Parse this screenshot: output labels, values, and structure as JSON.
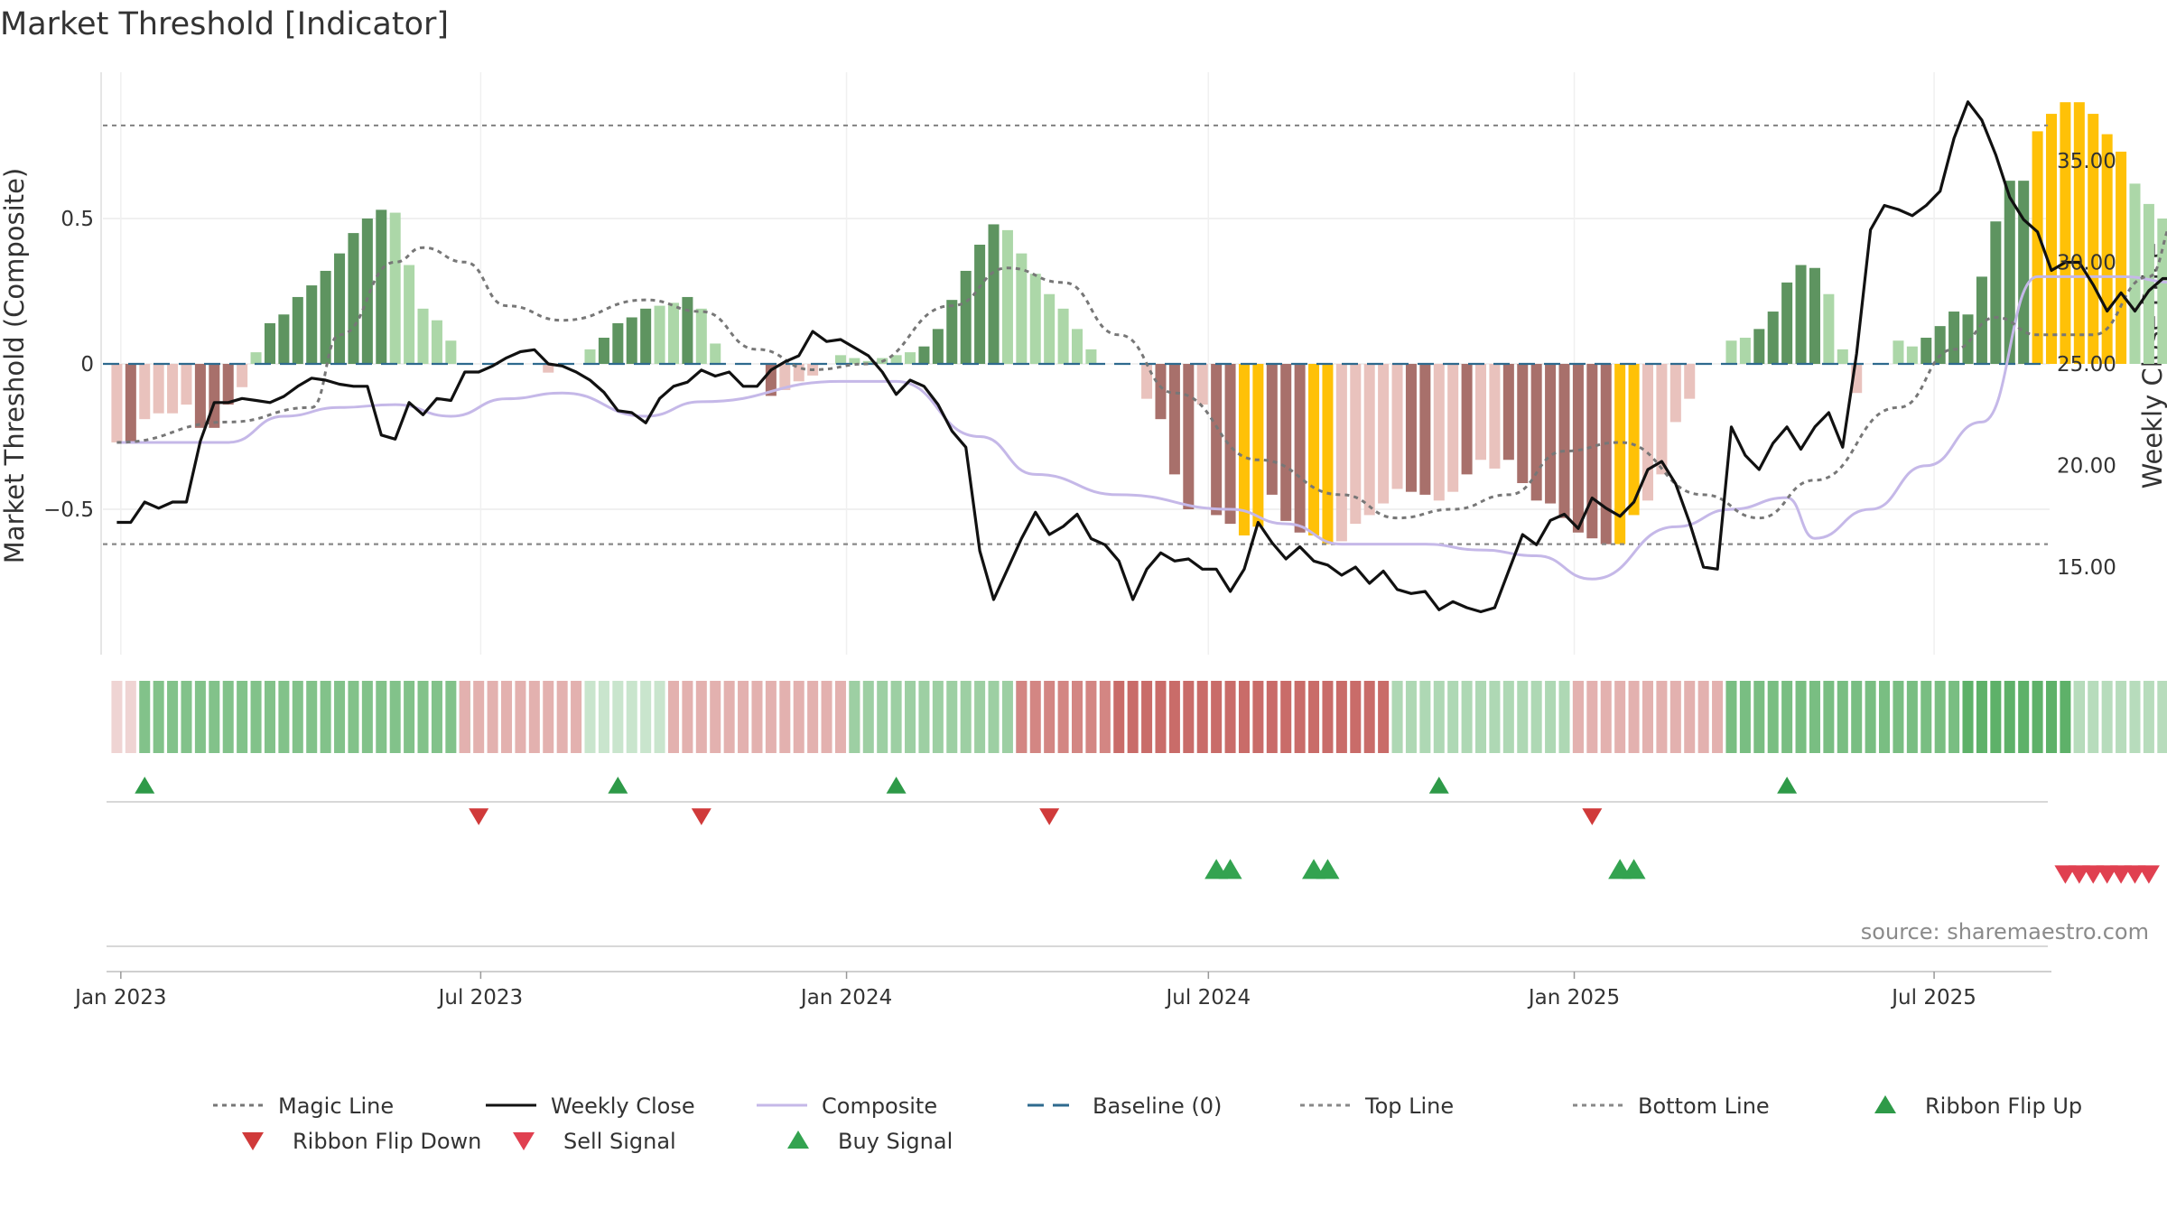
{
  "colors": {
    "magic": "#777777",
    "close": "#111111",
    "composite": "#c5b8e8",
    "baseline": "#2e6a8e",
    "topline": "#888888",
    "bottomline": "#888888",
    "bar_pos_dark": "#5e9460",
    "bar_pos_light": "#acd7a8",
    "bar_neg_dark": "#a8706b",
    "bar_neg_light": "#e9c2bd",
    "bar_extreme": "#ffc107",
    "flip_up": "#2e9a48",
    "flip_down": "#d03a3a",
    "sell": "#e04050",
    "buy": "#33a350"
  },
  "chart_data": {
    "type": "bar",
    "title": "Market Threshold [Indicator]",
    "ylabel_left": "Market Threshold (Composite)",
    "ylabel_right": "Weekly Close Price",
    "source": "source: sharemaestro.com",
    "x_range": [
      "2022-12-23",
      "2025-08-29"
    ],
    "left_ylim": [
      -1.0,
      1.0
    ],
    "right_ylim": [
      9.0,
      38.7
    ],
    "left_ticks": [
      {
        "value": 0.5,
        "label": "0.5"
      },
      {
        "value": 0,
        "label": "0"
      },
      {
        "value": -0.5,
        "label": "−0.5"
      }
    ],
    "right_ticks": [
      {
        "value": 35,
        "label": "35.00"
      },
      {
        "value": 30,
        "label": "30.00"
      },
      {
        "value": 25,
        "label": "25.00"
      },
      {
        "value": 20,
        "label": "20.00"
      },
      {
        "value": 15,
        "label": "15.00"
      }
    ],
    "x_ticks": [
      {
        "date": "2023-01-01",
        "label": "Jan 2023"
      },
      {
        "date": "2023-07-01",
        "label": "Jul 2023"
      },
      {
        "date": "2024-01-01",
        "label": "Jan 2024"
      },
      {
        "date": "2024-07-01",
        "label": "Jul 2024"
      },
      {
        "date": "2025-01-01",
        "label": "Jan 2025"
      },
      {
        "date": "2025-07-01",
        "label": "Jul 2025"
      }
    ],
    "top_line": 0.82,
    "bottom_line": -0.62,
    "baseline": 0,
    "grid": true,
    "start_date": "2022-12-30",
    "week_step_days": 7,
    "bars": [
      -0.27,
      -0.27,
      -0.19,
      -0.17,
      -0.17,
      -0.14,
      -0.22,
      -0.22,
      -0.14,
      -0.08,
      0.04,
      0.14,
      0.17,
      0.23,
      0.27,
      0.32,
      0.38,
      0.45,
      0.5,
      0.53,
      0.52,
      0.34,
      0.19,
      0.15,
      0.08,
      0,
      0,
      0,
      0,
      0,
      0,
      -0.03,
      0,
      0,
      0.05,
      0.09,
      0.14,
      0.16,
      0.19,
      0.2,
      0.21,
      0.23,
      0.19,
      0.07,
      0,
      0,
      0,
      -0.11,
      -0.09,
      -0.06,
      -0.04,
      0,
      0.03,
      0.02,
      0.01,
      0.02,
      0.03,
      0.04,
      0.06,
      0.12,
      0.22,
      0.32,
      0.41,
      0.48,
      0.46,
      0.38,
      0.31,
      0.24,
      0.19,
      0.12,
      0.05,
      0,
      0,
      0,
      -0.12,
      -0.19,
      -0.38,
      -0.5,
      -0.14,
      -0.52,
      -0.55,
      -0.59,
      -0.56,
      -0.45,
      -0.54,
      -0.58,
      -0.59,
      -0.62,
      -0.61,
      -0.55,
      -0.52,
      -0.48,
      -0.43,
      -0.44,
      -0.45,
      -0.47,
      -0.44,
      -0.38,
      -0.33,
      -0.36,
      -0.33,
      -0.41,
      -0.47,
      -0.48,
      -0.53,
      -0.58,
      -0.6,
      -0.62,
      -0.62,
      -0.52,
      -0.47,
      -0.38,
      -0.2,
      -0.12,
      0,
      0,
      0.08,
      0.09,
      0.12,
      0.18,
      0.28,
      0.34,
      0.33,
      0.24,
      0.05,
      -0.1,
      0,
      0,
      0.08,
      0.06,
      0.09,
      0.13,
      0.18,
      0.17,
      0.3,
      0.49,
      0.63,
      0.63,
      0.8,
      0.86,
      0.9,
      0.9,
      0.86,
      0.79,
      0.73,
      0.62,
      0.55,
      0.5,
      0.42,
      0.37,
      0.33,
      0.3,
      0.25,
      0.2,
      0.17,
      0.18,
      0.18,
      0.24,
      0.25,
      0.28,
      0.34,
      0.39,
      0.51,
      0.51,
      0.44,
      0.42
    ],
    "bar_colors": [
      "neg_light",
      "neg_dark",
      "neg_light",
      "neg_light",
      "neg_light",
      "neg_light",
      "neg_dark",
      "neg_dark",
      "neg_dark",
      "neg_light",
      "pos_light",
      "pos_dark",
      "pos_dark",
      "pos_dark",
      "pos_dark",
      "pos_dark",
      "pos_dark",
      "pos_dark",
      "pos_dark",
      "pos_dark",
      "pos_light",
      "pos_light",
      "pos_light",
      "pos_light",
      "pos_light",
      "neg_light",
      "neg_light",
      "neg_light",
      "neg_light",
      "neg_light",
      "neg_light",
      "neg_light",
      "neg_light",
      "neg_light",
      "pos_light",
      "pos_dark",
      "pos_dark",
      "pos_dark",
      "pos_dark",
      "pos_light",
      "pos_light",
      "pos_dark",
      "pos_light",
      "pos_light",
      "neg_light",
      "neg_light",
      "neg_light",
      "neg_dark",
      "neg_light",
      "neg_light",
      "neg_light",
      "neg_light",
      "pos_light",
      "pos_light",
      "pos_light",
      "pos_light",
      "pos_light",
      "pos_light",
      "pos_dark",
      "pos_dark",
      "pos_dark",
      "pos_dark",
      "pos_dark",
      "pos_dark",
      "pos_light",
      "pos_light",
      "pos_light",
      "pos_light",
      "pos_light",
      "pos_light",
      "pos_light",
      "neg_light",
      "neg_light",
      "neg_light",
      "neg_light",
      "neg_dark",
      "neg_dark",
      "neg_dark",
      "neg_light",
      "neg_dark",
      "neg_dark",
      "extreme",
      "extreme",
      "neg_dark",
      "neg_dark",
      "neg_dark",
      "extreme",
      "extreme",
      "neg_light",
      "neg_light",
      "neg_light",
      "neg_light",
      "neg_light",
      "neg_dark",
      "neg_dark",
      "neg_light",
      "neg_light",
      "neg_dark",
      "neg_light",
      "neg_light",
      "neg_dark",
      "neg_dark",
      "neg_dark",
      "neg_dark",
      "neg_dark",
      "neg_dark",
      "neg_dark",
      "neg_dark",
      "extreme",
      "extreme",
      "neg_light",
      "neg_light",
      "neg_light",
      "neg_light",
      "neg_light",
      "neg_light",
      "pos_light",
      "pos_light",
      "pos_dark",
      "pos_dark",
      "pos_dark",
      "pos_dark",
      "pos_dark",
      "pos_light",
      "pos_light",
      "neg_light",
      "pos_light",
      "pos_light",
      "pos_light",
      "pos_light",
      "pos_dark",
      "pos_dark",
      "pos_dark",
      "pos_dark",
      "pos_dark",
      "pos_dark",
      "pos_dark",
      "pos_dark",
      "extreme",
      "extreme",
      "extreme",
      "extreme",
      "extreme",
      "extreme",
      "extreme",
      "pos_light",
      "pos_light",
      "pos_light",
      "pos_light",
      "pos_light",
      "pos_light",
      "pos_light",
      "pos_light",
      "pos_light",
      "pos_light",
      "pos_light",
      "pos_light",
      "pos_dark",
      "pos_dark",
      "pos_dark",
      "pos_dark",
      "pos_dark",
      "pos_dark",
      "pos_dark",
      "pos_light",
      "pos_light"
    ],
    "weekly_close": [
      17.2,
      17.2,
      18.2,
      17.9,
      18.2,
      18.2,
      21.2,
      23.1,
      23.1,
      23.3,
      23.2,
      23.1,
      23.4,
      23.9,
      24.3,
      24.2,
      24.0,
      23.9,
      23.9,
      21.5,
      21.3,
      23.1,
      22.5,
      23.3,
      23.2,
      24.6,
      24.6,
      24.9,
      25.3,
      25.6,
      25.7,
      25.0,
      24.9,
      24.6,
      24.2,
      23.6,
      22.7,
      22.6,
      22.1,
      23.3,
      23.9,
      24.1,
      24.7,
      24.4,
      24.6,
      23.9,
      23.9,
      24.7,
      25.1,
      25.4,
      26.6,
      26.1,
      26.2,
      25.8,
      25.4,
      24.6,
      23.5,
      24.2,
      23.9,
      23.0,
      21.7,
      20.9,
      15.8,
      13.4,
      14.9,
      16.4,
      17.7,
      16.6,
      17.0,
      17.6,
      16.4,
      16.1,
      15.3,
      13.4,
      14.9,
      15.7,
      15.3,
      15.4,
      14.9,
      14.9,
      13.8,
      14.9,
      17.2,
      16.2,
      15.4,
      16.0,
      15.3,
      15.1,
      14.6,
      15.0,
      14.2,
      14.8,
      13.9,
      13.7,
      13.8,
      12.9,
      13.3,
      13.0,
      12.8,
      13.0,
      14.8,
      16.6,
      16.1,
      17.3,
      17.6,
      16.9,
      18.4,
      17.9,
      17.5,
      18.2,
      19.8,
      20.2,
      19.1,
      17.2,
      15.0,
      14.9,
      21.9,
      20.5,
      19.8,
      21.1,
      21.9,
      20.8,
      21.9,
      22.6,
      20.9,
      25.5,
      31.6,
      32.8,
      32.6,
      32.3,
      32.8,
      33.5,
      36.1,
      37.9,
      37.0,
      35.3,
      33.2,
      32.1,
      31.5,
      29.6,
      30.0,
      30.0,
      28.9,
      27.6,
      28.5,
      27.6,
      28.6,
      29.2,
      29.2,
      30.2,
      30.1,
      31.2,
      31.5,
      31.2,
      31.5,
      31.3,
      29.7,
      29.6
    ]
  },
  "series_paths": {
    "magic": [
      [
        -0.27,
        0
      ],
      [
        -0.2,
        8
      ],
      [
        -0.15,
        14
      ],
      [
        0.1,
        16
      ],
      [
        0.35,
        20
      ],
      [
        0.4,
        22
      ],
      [
        0.35,
        25
      ],
      [
        0.2,
        28
      ],
      [
        0.15,
        32
      ],
      [
        0.22,
        38
      ],
      [
        0.18,
        42
      ],
      [
        0.05,
        46
      ],
      [
        -0.02,
        50
      ],
      [
        0.0,
        54
      ],
      [
        0.2,
        60
      ],
      [
        0.33,
        64
      ],
      [
        0.28,
        68
      ],
      [
        0.1,
        72
      ],
      [
        -0.1,
        76
      ],
      [
        -0.33,
        82
      ],
      [
        -0.45,
        88
      ],
      [
        -0.53,
        92
      ],
      [
        -0.5,
        96
      ],
      [
        -0.45,
        100
      ],
      [
        -0.3,
        104
      ],
      [
        -0.27,
        108
      ],
      [
        -0.45,
        114
      ],
      [
        -0.53,
        118
      ],
      [
        -0.4,
        122
      ],
      [
        -0.15,
        128
      ],
      [
        0.05,
        132
      ],
      [
        0.16,
        135
      ],
      [
        0.1,
        138
      ],
      [
        0.1,
        142
      ],
      [
        0.3,
        146
      ],
      [
        0.5,
        148
      ],
      [
        0.75,
        152
      ],
      [
        0.75,
        156
      ],
      [
        0.6,
        160
      ],
      [
        0.35,
        164
      ],
      [
        0.28,
        168
      ],
      [
        0.28,
        172
      ]
    ],
    "composite": [
      [
        -0.27,
        0
      ],
      [
        -0.27,
        8
      ],
      [
        -0.18,
        12
      ],
      [
        -0.15,
        16
      ],
      [
        -0.14,
        20
      ],
      [
        -0.18,
        24
      ],
      [
        -0.12,
        28
      ],
      [
        -0.1,
        32
      ],
      [
        -0.18,
        38
      ],
      [
        -0.13,
        42
      ],
      [
        -0.06,
        52
      ],
      [
        -0.06,
        56
      ],
      [
        -0.25,
        62
      ],
      [
        -0.38,
        66
      ],
      [
        -0.45,
        72
      ],
      [
        -0.5,
        80
      ],
      [
        -0.55,
        84
      ],
      [
        -0.62,
        88
      ],
      [
        -0.62,
        94
      ],
      [
        -0.64,
        98
      ],
      [
        -0.66,
        102
      ],
      [
        -0.74,
        106
      ],
      [
        -0.56,
        112
      ],
      [
        -0.5,
        116
      ],
      [
        -0.46,
        120
      ],
      [
        -0.6,
        122
      ],
      [
        -0.5,
        126
      ],
      [
        -0.35,
        130
      ],
      [
        -0.2,
        134
      ],
      [
        0.3,
        138
      ],
      [
        0.3,
        144
      ],
      [
        0.28,
        148
      ],
      [
        0.23,
        152
      ],
      [
        0.24,
        156
      ],
      [
        0.25,
        162
      ],
      [
        0.3,
        166
      ],
      [
        0.34,
        168
      ],
      [
        0.33,
        172
      ]
    ]
  },
  "ribbon": {
    "segments": [
      {
        "from": 0,
        "to": 1,
        "tone": "neg",
        "shade": 0.25
      },
      {
        "from": 2,
        "to": 25,
        "tone": "pos",
        "shade": 0.7
      },
      {
        "from": 25,
        "to": 34,
        "tone": "neg",
        "shade": 0.45
      },
      {
        "from": 34,
        "to": 40,
        "tone": "pos",
        "shade": 0.3
      },
      {
        "from": 40,
        "to": 53,
        "tone": "neg",
        "shade": 0.45
      },
      {
        "from": 53,
        "to": 65,
        "tone": "pos",
        "shade": 0.55
      },
      {
        "from": 65,
        "to": 71,
        "tone": "neg",
        "shade": 0.7
      },
      {
        "from": 72,
        "to": 92,
        "tone": "neg",
        "shade": 0.85
      },
      {
        "from": 92,
        "to": 105,
        "tone": "pos",
        "shade": 0.45
      },
      {
        "from": 105,
        "to": 116,
        "tone": "neg",
        "shade": 0.45
      },
      {
        "from": 116,
        "to": 133,
        "tone": "pos",
        "shade": 0.75
      },
      {
        "from": 133,
        "to": 141,
        "tone": "pos",
        "shade": 0.9
      },
      {
        "from": 141,
        "to": 155,
        "tone": "pos",
        "shade": 0.4
      },
      {
        "from": 155,
        "to": 170,
        "tone": "neg",
        "shade": 0.6
      },
      {
        "from": 170,
        "to": 173,
        "tone": "pos",
        "shade": 0.35
      }
    ]
  },
  "signals": {
    "flip_up_weeks": [
      2,
      36,
      56,
      95,
      120,
      170
    ],
    "flip_down_weeks": [
      26,
      42,
      67,
      106,
      158
    ],
    "buy_weeks": [
      79,
      80,
      86,
      87,
      108,
      109
    ],
    "sell_weeks": [
      140,
      141,
      142,
      143,
      144,
      145,
      146
    ]
  },
  "legend": [
    {
      "key": "magic",
      "label": "Magic Line",
      "style": "dotted-line"
    },
    {
      "key": "close",
      "label": "Weekly Close",
      "style": "solid-line"
    },
    {
      "key": "composite",
      "label": "Composite",
      "style": "solid-line"
    },
    {
      "key": "baseline",
      "label": "Baseline (0)",
      "style": "dashed-line"
    },
    {
      "key": "topline",
      "label": "Top Line",
      "style": "dotted-line"
    },
    {
      "key": "bottomline",
      "label": "Bottom Line",
      "style": "dotted-line"
    },
    {
      "key": "flip_up",
      "label": "Ribbon Flip Up",
      "style": "triangle-up"
    },
    {
      "key": "flip_down",
      "label": "Ribbon Flip Down",
      "style": "triangle-down"
    },
    {
      "key": "sell",
      "label": "Sell Signal",
      "style": "triangle-down"
    },
    {
      "key": "buy",
      "label": "Buy Signal",
      "style": "triangle-up"
    }
  ]
}
